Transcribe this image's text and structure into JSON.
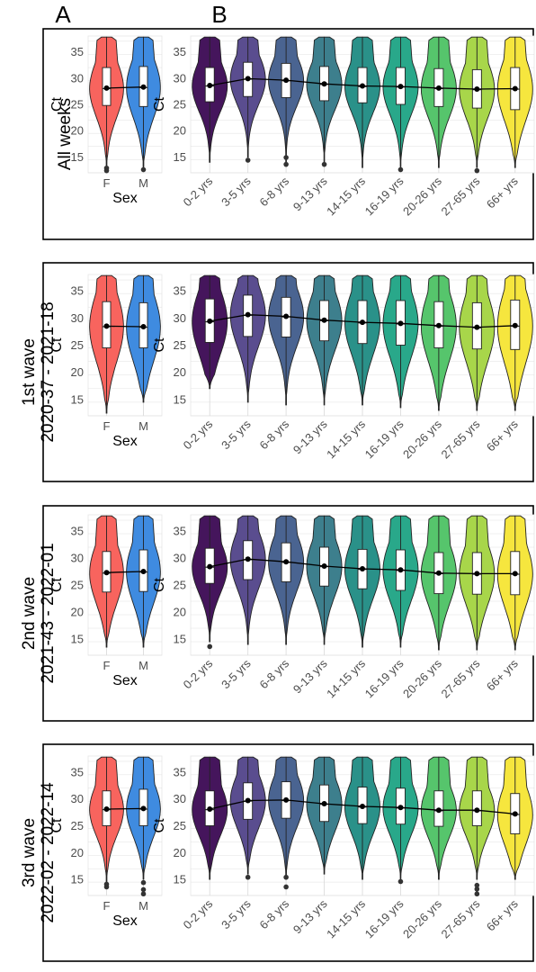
{
  "panel_labels": [
    "A",
    "B"
  ],
  "colors": {
    "sex": [
      "#f8645e",
      "#3f8be0"
    ],
    "age": [
      "#45155c",
      "#5a4d8f",
      "#4a6491",
      "#3d7f8d",
      "#2a9189",
      "#29a88a",
      "#56c56c",
      "#a8d64a",
      "#f6e63e"
    ],
    "panel_bg": "#ffffff",
    "grid": "#dcdcdc",
    "border": "#000000"
  },
  "chart_data": [
    {
      "type": "violin",
      "row_label_lines": [
        "All weeks"
      ],
      "sex": {
        "xlabel": "Sex",
        "ylabel": "Ct",
        "ylim": [
          12,
          38
        ],
        "yticks": [
          15,
          20,
          25,
          30,
          35
        ],
        "categories": [
          "F",
          "M"
        ],
        "mean": [
          28.1,
          28.3
        ],
        "median": [
          28.0,
          28.2
        ],
        "q1": [
          24.8,
          24.6
        ],
        "q3": [
          32.0,
          32.2
        ],
        "min": [
          13.0,
          13.0
        ],
        "max": [
          37.8,
          37.8
        ],
        "outliers": [
          [
            12.4,
            12.9
          ],
          [
            12.6
          ]
        ]
      },
      "age": {
        "ylabel": "Ct",
        "ylim": [
          12,
          38
        ],
        "yticks": [
          15,
          20,
          25,
          30,
          35
        ],
        "categories": [
          "0-2 yrs",
          "3-5 yrs",
          "6-8 yrs",
          "9-13 yrs",
          "14-15 yrs",
          "16-19 yrs",
          "20-26 yrs",
          "27-65 yrs",
          "66+ yrs"
        ],
        "mean": [
          28.6,
          29.9,
          29.6,
          28.9,
          28.5,
          28.4,
          28.1,
          27.9,
          28.0
        ],
        "median": [
          28.5,
          29.8,
          29.5,
          28.8,
          28.4,
          28.3,
          28.0,
          27.8,
          27.9
        ],
        "q1": [
          25.5,
          26.5,
          26.3,
          25.7,
          25.3,
          25.0,
          24.6,
          24.3,
          24.0
        ],
        "q3": [
          32.0,
          33.0,
          32.8,
          32.2,
          32.0,
          32.0,
          31.8,
          31.6,
          32.0
        ],
        "min": [
          14.0,
          15.0,
          14.0,
          14.0,
          13.0,
          13.0,
          13.0,
          13.0,
          13.0
        ],
        "max": [
          37.8,
          37.8,
          37.8,
          37.8,
          37.8,
          37.8,
          37.8,
          37.8,
          37.8
        ],
        "outliers": [
          [],
          [
            14.4
          ],
          [
            13.6,
            14.9
          ],
          [
            13.6
          ],
          [],
          [
            12.6
          ],
          [],
          [
            12.4
          ],
          []
        ]
      }
    },
    {
      "type": "violin",
      "row_label_lines": [
        "1st wave",
        "2020-37 - 2021-18"
      ],
      "sex": {
        "xlabel": "Sex",
        "ylabel": "Ct",
        "ylim": [
          12,
          38
        ],
        "yticks": [
          15,
          20,
          25,
          30,
          35
        ],
        "categories": [
          "F",
          "M"
        ],
        "mean": [
          28.5,
          28.4
        ],
        "median": [
          28.4,
          28.3
        ],
        "q1": [
          24.5,
          24.5
        ],
        "q3": [
          33.0,
          32.8
        ],
        "min": [
          12.5,
          14.5
        ],
        "max": [
          37.8,
          37.8
        ],
        "outliers": [
          [],
          []
        ]
      },
      "age": {
        "ylabel": "Ct",
        "ylim": [
          12,
          38
        ],
        "yticks": [
          15,
          20,
          25,
          30,
          35
        ],
        "categories": [
          "0-2 yrs",
          "3-5 yrs",
          "6-8 yrs",
          "9-13 yrs",
          "14-15 yrs",
          "16-19 yrs",
          "20-26 yrs",
          "27-65 yrs",
          "66+ yrs"
        ],
        "mean": [
          29.4,
          30.6,
          30.3,
          29.6,
          29.2,
          29.0,
          28.6,
          28.3,
          28.6
        ],
        "median": [
          29.3,
          30.5,
          30.2,
          29.5,
          29.1,
          28.9,
          28.5,
          28.2,
          28.5
        ],
        "q1": [
          25.5,
          26.6,
          26.5,
          25.8,
          25.3,
          25.0,
          24.5,
          24.3,
          24.2
        ],
        "q3": [
          33.5,
          34.2,
          33.8,
          33.2,
          33.2,
          33.2,
          33.0,
          32.8,
          33.3
        ],
        "min": [
          17.0,
          14.5,
          14.0,
          14.0,
          14.0,
          13.5,
          13.0,
          13.0,
          13.0
        ],
        "max": [
          37.8,
          37.8,
          37.8,
          37.8,
          37.8,
          37.8,
          37.8,
          37.8,
          37.8
        ],
        "outliers": [
          [],
          [],
          [],
          [],
          [],
          [],
          [],
          [],
          []
        ]
      }
    },
    {
      "type": "violin",
      "row_label_lines": [
        "2nd wave",
        "2021-43 - 2022-01"
      ],
      "sex": {
        "xlabel": "Sex",
        "ylabel": "Ct",
        "ylim": [
          12,
          38
        ],
        "yticks": [
          15,
          20,
          25,
          30,
          35
        ],
        "categories": [
          "F",
          "M"
        ],
        "mean": [
          27.3,
          27.5
        ],
        "median": [
          27.2,
          27.4
        ],
        "q1": [
          23.7,
          23.8
        ],
        "q3": [
          31.2,
          31.5
        ],
        "min": [
          13.5,
          13.5
        ],
        "max": [
          37.8,
          37.8
        ],
        "outliers": [
          [],
          []
        ]
      },
      "age": {
        "ylabel": "Ct",
        "ylim": [
          12,
          38
        ],
        "yticks": [
          15,
          20,
          25,
          30,
          35
        ],
        "categories": [
          "0-2 yrs",
          "3-5 yrs",
          "6-8 yrs",
          "9-13 yrs",
          "14-15 yrs",
          "16-19 yrs",
          "20-26 yrs",
          "27-65 yrs",
          "66+ yrs"
        ],
        "mean": [
          28.4,
          29.8,
          29.3,
          28.5,
          28.0,
          27.8,
          27.2,
          27.1,
          27.1
        ],
        "median": [
          28.3,
          29.7,
          29.2,
          28.4,
          27.9,
          27.7,
          27.1,
          27.0,
          27.0
        ],
        "q1": [
          25.3,
          26.0,
          25.6,
          24.8,
          24.3,
          24.0,
          23.4,
          23.3,
          23.2
        ],
        "q3": [
          31.8,
          33.2,
          32.8,
          32.0,
          31.6,
          31.5,
          31.0,
          31.0,
          31.2
        ],
        "min": [
          14.5,
          14.0,
          14.0,
          14.0,
          13.5,
          13.5,
          13.0,
          13.0,
          13.0
        ],
        "max": [
          37.8,
          37.8,
          37.8,
          37.8,
          37.8,
          37.8,
          37.8,
          37.8,
          37.8
        ],
        "outliers": [
          [
            13.6
          ],
          [],
          [],
          [],
          [],
          [],
          [],
          [],
          []
        ]
      }
    },
    {
      "type": "violin",
      "row_label_lines": [
        "3rd wave",
        "2022-02 - 2022-14"
      ],
      "sex": {
        "xlabel": "Sex",
        "ylabel": "Ct",
        "ylim": [
          12,
          38
        ],
        "yticks": [
          15,
          20,
          25,
          30,
          35
        ],
        "categories": [
          "F",
          "M"
        ],
        "mean": [
          28.1,
          28.2
        ],
        "median": [
          28.0,
          28.1
        ],
        "q1": [
          25.0,
          25.0
        ],
        "q3": [
          31.5,
          31.8
        ],
        "min": [
          14.5,
          15.0
        ],
        "max": [
          37.8,
          37.8
        ],
        "outliers": [
          [
            13.6,
            14.1
          ],
          [
            12.3,
            13.1,
            14.4
          ]
        ]
      },
      "age": {
        "ylabel": "Ct",
        "ylim": [
          12,
          38
        ],
        "yticks": [
          15,
          20,
          25,
          30,
          35
        ],
        "categories": [
          "0-2 yrs",
          "3-5 yrs",
          "6-8 yrs",
          "9-13 yrs",
          "14-15 yrs",
          "16-19 yrs",
          "20-26 yrs",
          "27-65 yrs",
          "66+ yrs"
        ],
        "mean": [
          28.1,
          29.7,
          29.8,
          29.1,
          28.6,
          28.4,
          27.9,
          27.9,
          27.2
        ],
        "median": [
          28.0,
          29.6,
          29.7,
          29.0,
          28.5,
          28.3,
          27.8,
          27.8,
          27.1
        ],
        "q1": [
          25.0,
          26.2,
          26.4,
          25.8,
          25.4,
          25.3,
          24.9,
          25.0,
          23.5
        ],
        "q3": [
          31.5,
          33.0,
          33.2,
          32.6,
          32.2,
          32.0,
          31.5,
          31.5,
          31.0
        ],
        "min": [
          15.0,
          16.0,
          15.0,
          16.0,
          15.0,
          15.0,
          15.0,
          15.0,
          15.0
        ],
        "max": [
          37.8,
          37.8,
          37.8,
          37.8,
          37.8,
          37.8,
          37.8,
          37.8,
          37.8
        ],
        "outliers": [
          [],
          [
            15.4
          ],
          [
            13.6,
            15.4
          ],
          [],
          [],
          [
            14.6
          ],
          [],
          [
            12.3,
            13.2,
            13.9
          ],
          []
        ]
      }
    }
  ]
}
